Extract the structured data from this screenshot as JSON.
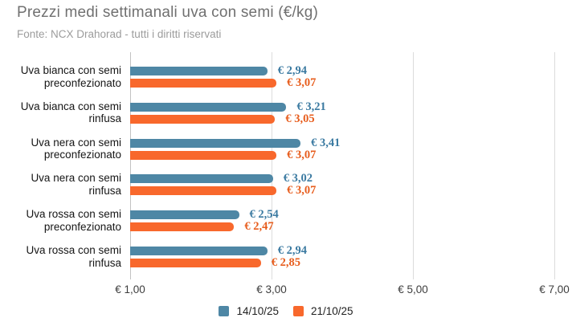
{
  "header": {
    "title": "Prezzi medi settimanali uva con semi (€/kg)",
    "subtitle": "Fonte: NCX Drahorad - tutti i diritti riservati"
  },
  "chart_data": {
    "type": "bar",
    "orientation": "horizontal",
    "title": "Prezzi medi settimanali uva con semi (€/kg)",
    "subtitle": "Fonte: NCX Drahorad - tutti i diritti riservati",
    "categories": [
      [
        "Uva bianca con semi",
        "preconfezionato"
      ],
      [
        "Uva bianca con semi",
        "rinfusa"
      ],
      [
        "Uva nera con semi",
        "preconfezionato"
      ],
      [
        "Uva nera con semi",
        "rinfusa"
      ],
      [
        "Uva rossa con semi",
        "preconfezionato"
      ],
      [
        "Uva rossa con semi",
        "rinfusa"
      ]
    ],
    "series": [
      {
        "name": "14/10/25",
        "color": "#4e87a5",
        "label_color": "#3b7aa1",
        "values": [
          2.94,
          3.21,
          3.41,
          3.02,
          2.54,
          2.94
        ]
      },
      {
        "name": "21/10/25",
        "color": "#f8682c",
        "label_color": "#e75d1d",
        "values": [
          3.07,
          3.05,
          3.07,
          3.07,
          2.47,
          2.85
        ]
      }
    ],
    "value_prefix": "€ ",
    "decimal_separator": ",",
    "xlim": [
      1,
      7
    ],
    "xticks": [
      1,
      3,
      5,
      7
    ],
    "xtick_labels": [
      "€ 1,00",
      "€ 3,00",
      "€ 5,00",
      "€ 7,00"
    ],
    "grid": true,
    "legend_position": "bottom"
  }
}
